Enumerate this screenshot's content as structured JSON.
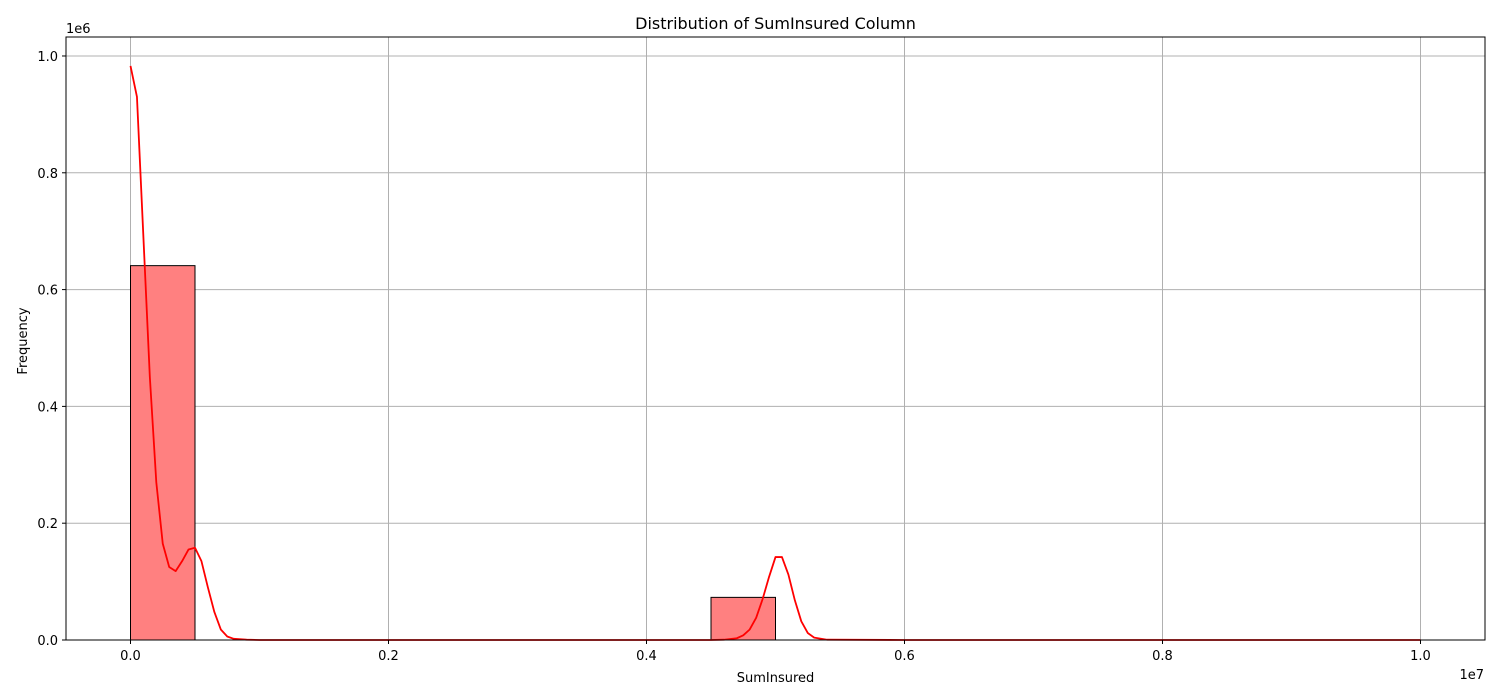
{
  "chart_data": {
    "type": "histogram",
    "title": "Distribution of SumInsured Column",
    "xlabel": "SumInsured",
    "ylabel": "Frequency",
    "x_offset_label": "1e7",
    "y_offset_label": "1e6",
    "xlim": [
      -0.05,
      1.05
    ],
    "ylim": [
      0,
      1.0325
    ],
    "x_ticks": [
      0.0,
      0.2,
      0.4,
      0.6,
      0.8,
      1.0
    ],
    "x_tick_labels": [
      "0.0",
      "0.2",
      "0.4",
      "0.6",
      "0.8",
      "1.0"
    ],
    "y_ticks": [
      0.0,
      0.2,
      0.4,
      0.6,
      0.8,
      1.0
    ],
    "y_tick_labels": [
      "0.0",
      "0.2",
      "0.4",
      "0.6",
      "0.8",
      "1.0"
    ],
    "grid": true,
    "bin_width": 0.05,
    "bins": [
      {
        "x0": 0.0,
        "x1": 0.05,
        "count": 0.641
      },
      {
        "x0": 0.45,
        "x1": 0.5,
        "count": 0.073
      }
    ],
    "kde": {
      "x": [
        0.0,
        0.005,
        0.01,
        0.015,
        0.02,
        0.025,
        0.03,
        0.035,
        0.04,
        0.045,
        0.05,
        0.055,
        0.06,
        0.065,
        0.07,
        0.075,
        0.08,
        0.09,
        0.1,
        0.2,
        0.3,
        0.4,
        0.45,
        0.46,
        0.47,
        0.475,
        0.48,
        0.485,
        0.49,
        0.495,
        0.5,
        0.505,
        0.51,
        0.515,
        0.52,
        0.525,
        0.53,
        0.54,
        0.6,
        0.8,
        1.0
      ],
      "y": [
        0.983,
        0.93,
        0.69,
        0.45,
        0.27,
        0.165,
        0.125,
        0.118,
        0.135,
        0.155,
        0.158,
        0.135,
        0.09,
        0.048,
        0.018,
        0.006,
        0.002,
        0.0005,
        0.0,
        0.0,
        0.0,
        0.0,
        0.0,
        0.0005,
        0.003,
        0.008,
        0.018,
        0.038,
        0.07,
        0.108,
        0.142,
        0.142,
        0.112,
        0.068,
        0.032,
        0.012,
        0.004,
        0.0005,
        0.0,
        0.0,
        0.0
      ]
    },
    "colors": {
      "bar_fill": "#ff8080",
      "bar_edge": "#000000",
      "kde_line": "#ff0000",
      "grid": "#b0b0b0"
    }
  }
}
